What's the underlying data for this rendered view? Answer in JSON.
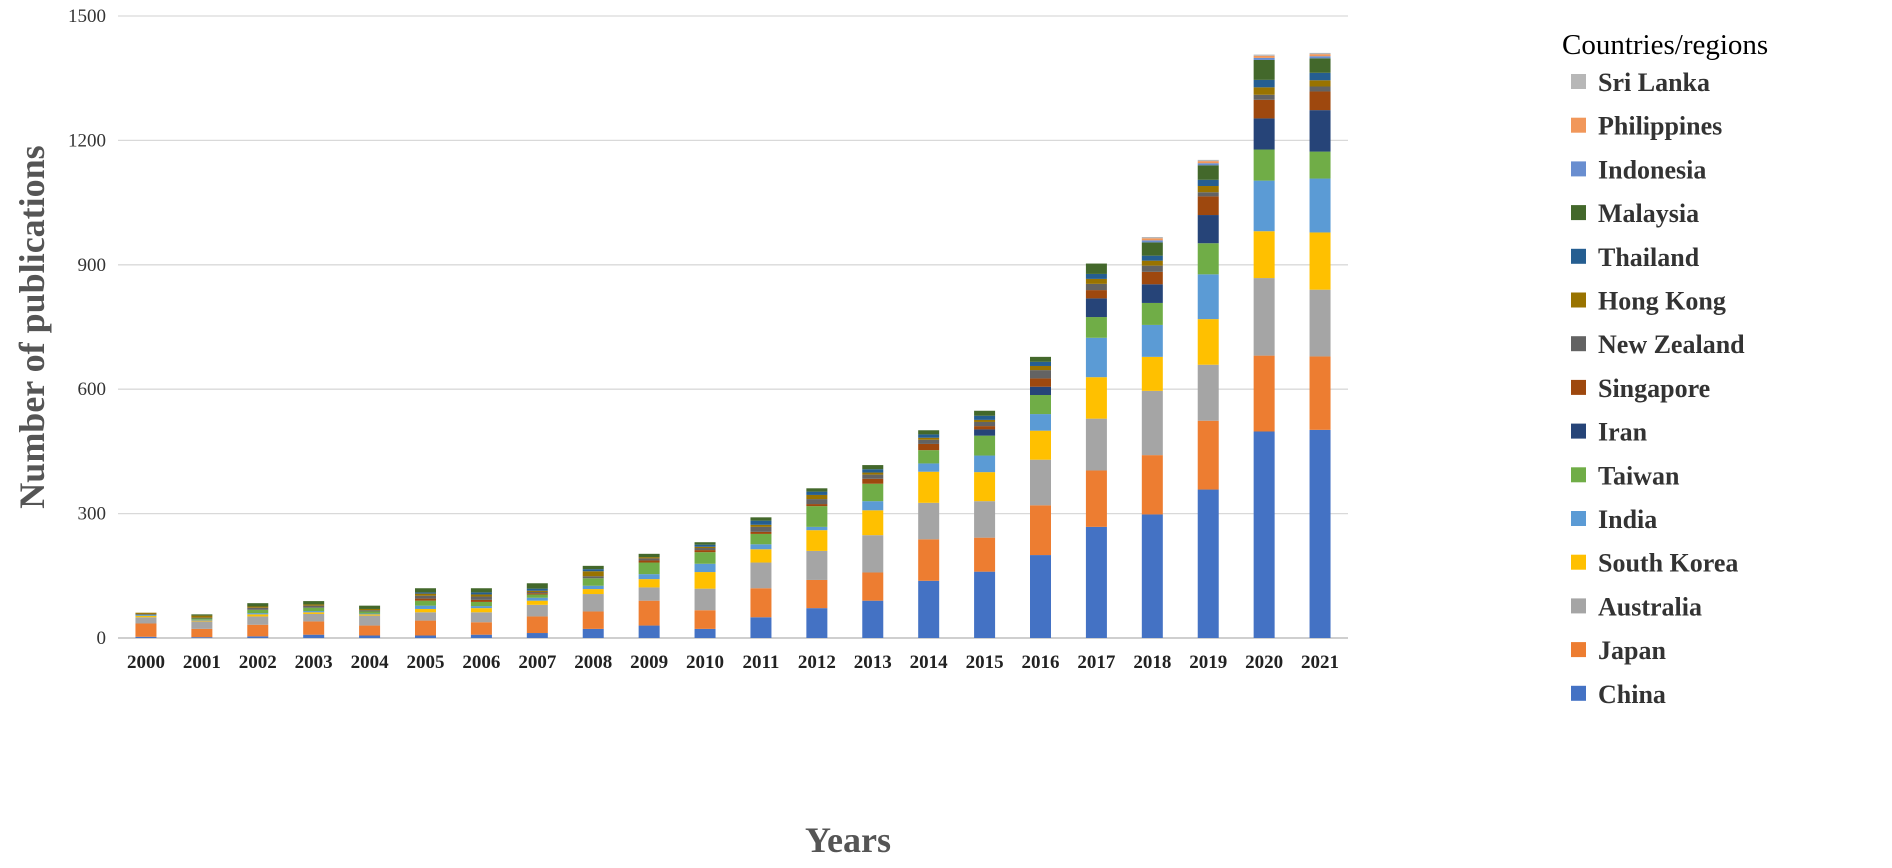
{
  "chart_data": {
    "type": "bar",
    "stacked": true,
    "xlabel": "Years",
    "ylabel": "Number of publications",
    "ylim": [
      0,
      1500
    ],
    "yticks": [
      0,
      300,
      600,
      900,
      1200,
      1500
    ],
    "grid": true,
    "legend_title": "Countries/regions",
    "legend_position": "right",
    "categories": [
      "2000",
      "2001",
      "2002",
      "2003",
      "2004",
      "2005",
      "2006",
      "2007",
      "2008",
      "2009",
      "2010",
      "2011",
      "2012",
      "2013",
      "2014",
      "2015",
      "2016",
      "2017",
      "2018",
      "2019",
      "2020",
      "2021"
    ],
    "series": [
      {
        "name": "China",
        "color": "#4472C4",
        "values": [
          3,
          2,
          4,
          8,
          6,
          6,
          8,
          12,
          22,
          30,
          22,
          50,
          72,
          90,
          138,
          160,
          200,
          268,
          298,
          358,
          498,
          502
        ]
      },
      {
        "name": "Japan",
        "color": "#ED7D31",
        "values": [
          32,
          20,
          28,
          32,
          24,
          36,
          30,
          40,
          42,
          60,
          45,
          70,
          68,
          68,
          100,
          82,
          120,
          136,
          143,
          166,
          183,
          177
        ]
      },
      {
        "name": "Australia",
        "color": "#A5A5A5",
        "values": [
          15,
          18,
          20,
          18,
          24,
          20,
          24,
          28,
          42,
          32,
          52,
          62,
          70,
          90,
          88,
          88,
          110,
          125,
          155,
          135,
          187,
          161
        ]
      },
      {
        "name": "South Korea",
        "color": "#FFC000",
        "values": [
          3,
          2,
          5,
          4,
          3,
          8,
          10,
          10,
          12,
          20,
          40,
          32,
          50,
          60,
          75,
          70,
          70,
          100,
          82,
          110,
          113,
          138
        ]
      },
      {
        "name": "India",
        "color": "#5B9BD5",
        "values": [
          2,
          2,
          3,
          3,
          2,
          8,
          5,
          7,
          8,
          12,
          20,
          12,
          8,
          22,
          20,
          40,
          40,
          95,
          77,
          108,
          122,
          130
        ]
      },
      {
        "name": "Taiwan",
        "color": "#70AD47",
        "values": [
          1,
          3,
          8,
          8,
          5,
          12,
          10,
          8,
          18,
          28,
          28,
          25,
          50,
          42,
          32,
          48,
          46,
          50,
          53,
          75,
          75,
          65
        ]
      },
      {
        "name": "Iran",
        "color": "#264478",
        "values": [
          0,
          0,
          0,
          0,
          0,
          0,
          0,
          0,
          0,
          0,
          0,
          0,
          0,
          0,
          0,
          15,
          20,
          45,
          45,
          68,
          75,
          100
        ]
      },
      {
        "name": "Singapore",
        "color": "#9E480E",
        "values": [
          0,
          0,
          0,
          0,
          0,
          5,
          5,
          3,
          0,
          5,
          5,
          5,
          5,
          12,
          15,
          8,
          20,
          20,
          30,
          45,
          45,
          45
        ]
      },
      {
        "name": "New Zealand",
        "color": "#636363",
        "values": [
          2,
          2,
          5,
          5,
          3,
          7,
          8,
          3,
          5,
          5,
          5,
          12,
          12,
          10,
          10,
          10,
          20,
          15,
          15,
          10,
          12,
          12
        ]
      },
      {
        "name": "Hong Kong",
        "color": "#997300",
        "values": [
          3,
          5,
          3,
          3,
          3,
          5,
          5,
          3,
          12,
          3,
          3,
          5,
          10,
          5,
          5,
          5,
          10,
          12,
          12,
          15,
          18,
          15
        ]
      },
      {
        "name": "Thailand",
        "color": "#255E91",
        "values": [
          0,
          0,
          0,
          0,
          0,
          3,
          5,
          5,
          5,
          0,
          5,
          10,
          8,
          8,
          8,
          10,
          10,
          12,
          12,
          15,
          18,
          18
        ]
      },
      {
        "name": "Malaysia",
        "color": "#43682B",
        "values": [
          0,
          3,
          8,
          8,
          8,
          10,
          10,
          13,
          8,
          8,
          6,
          8,
          8,
          10,
          10,
          12,
          12,
          25,
          32,
          35,
          48,
          35
        ]
      },
      {
        "name": "Indonesia",
        "color": "#698ED0",
        "values": [
          0,
          0,
          0,
          0,
          0,
          0,
          0,
          0,
          0,
          0,
          0,
          0,
          0,
          0,
          0,
          0,
          0,
          0,
          5,
          5,
          5,
          5
        ]
      },
      {
        "name": "Philippines",
        "color": "#F1975A",
        "values": [
          0,
          0,
          0,
          0,
          0,
          0,
          0,
          0,
          0,
          0,
          0,
          0,
          0,
          0,
          0,
          0,
          0,
          0,
          5,
          5,
          5,
          5
        ]
      },
      {
        "name": "Sri Lanka",
        "color": "#B7B7B7",
        "values": [
          0,
          0,
          0,
          0,
          0,
          0,
          0,
          0,
          0,
          0,
          0,
          0,
          0,
          0,
          0,
          0,
          0,
          0,
          3,
          3,
          3,
          3
        ]
      }
    ]
  }
}
